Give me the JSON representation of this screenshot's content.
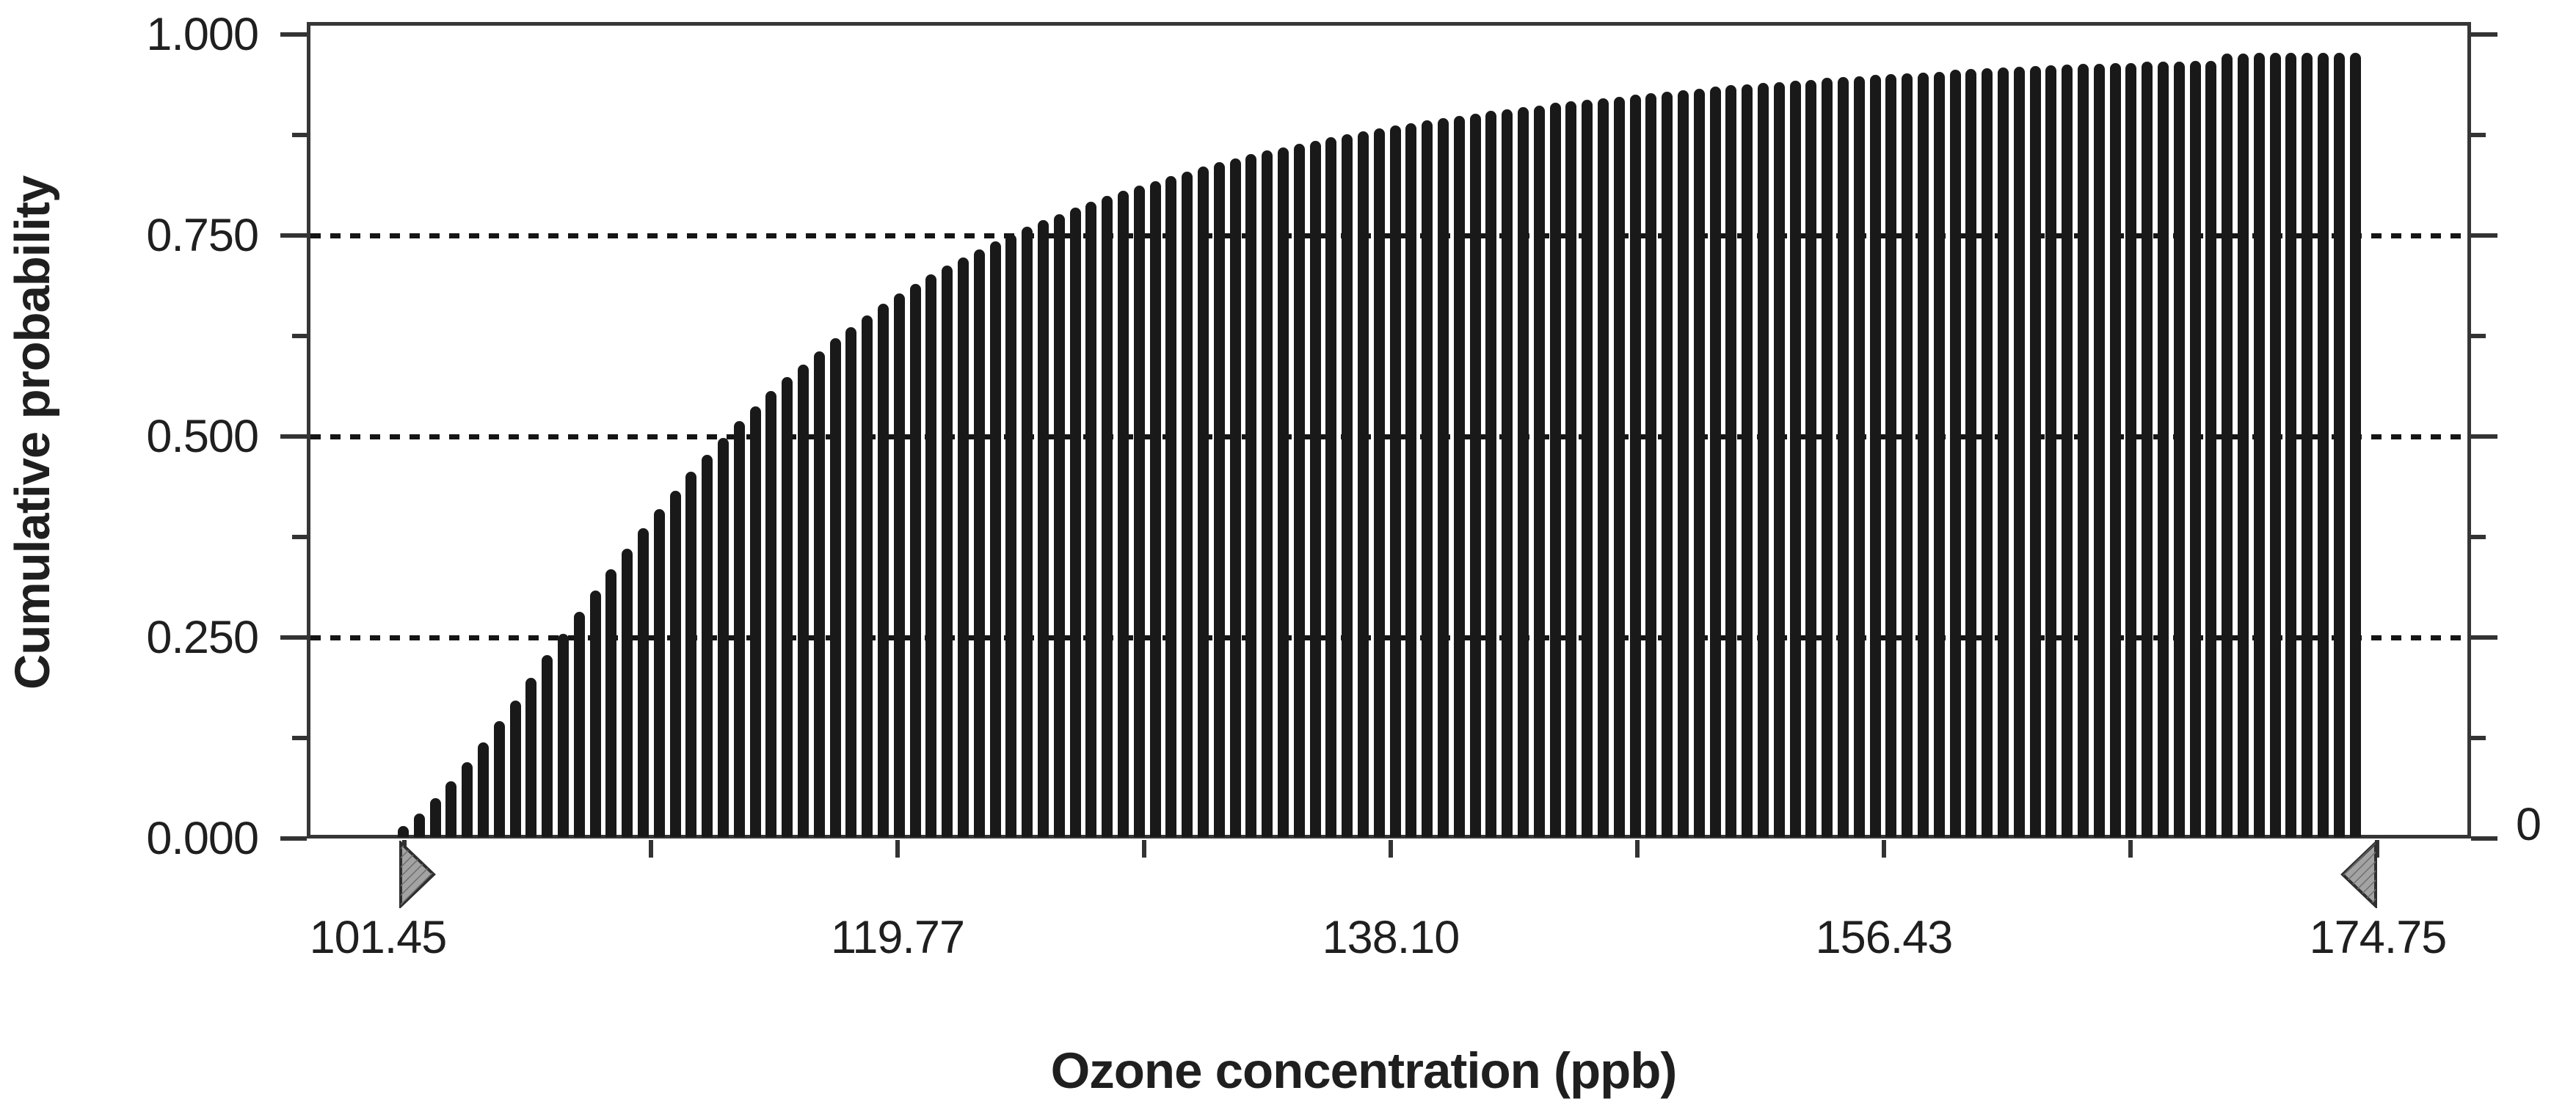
{
  "chart_data": {
    "type": "bar",
    "subtype": "cumulative-distribution",
    "title": "",
    "xlabel": "Ozone concentration (ppb)",
    "ylabel": "Cumulative probability",
    "x_tick_labels": [
      "101.45",
      "119.77",
      "138.10",
      "156.43",
      "174.75"
    ],
    "y_tick_labels_left": [
      "1.000",
      "0.750",
      "0.500",
      "0.250",
      "0.000"
    ],
    "y_right_tick_label": "0",
    "xlim": [
      101.45,
      174.75
    ],
    "ylim": [
      0,
      1
    ],
    "grid": "horizontal-dotted",
    "gridlines_y": [
      0.25,
      0.5,
      0.75
    ],
    "legend_position": "none",
    "bars": {
      "count": 123,
      "first_center_ppb": 101.4,
      "step_ppb": 0.5945,
      "cumulative_probability": [
        0.014,
        0.029,
        0.048,
        0.069,
        0.093,
        0.118,
        0.144,
        0.17,
        0.198,
        0.226,
        0.253,
        0.28,
        0.307,
        0.333,
        0.359,
        0.384,
        0.408,
        0.431,
        0.454,
        0.475,
        0.496,
        0.517,
        0.536,
        0.555,
        0.572,
        0.588,
        0.604,
        0.62,
        0.634,
        0.649,
        0.663,
        0.676,
        0.688,
        0.7,
        0.711,
        0.721,
        0.731,
        0.741,
        0.75,
        0.759,
        0.767,
        0.775,
        0.783,
        0.79,
        0.797,
        0.804,
        0.81,
        0.816,
        0.822,
        0.828,
        0.834,
        0.839,
        0.844,
        0.849,
        0.854,
        0.858,
        0.862,
        0.866,
        0.87,
        0.874,
        0.878,
        0.881,
        0.885,
        0.888,
        0.891,
        0.894,
        0.897,
        0.9,
        0.903,
        0.905,
        0.908,
        0.91,
        0.913,
        0.915,
        0.917,
        0.919,
        0.921,
        0.923,
        0.925,
        0.927,
        0.929,
        0.931,
        0.933,
        0.935,
        0.936,
        0.938,
        0.939,
        0.941,
        0.942,
        0.944,
        0.945,
        0.946,
        0.948,
        0.949,
        0.95,
        0.951,
        0.952,
        0.954,
        0.955,
        0.956,
        0.957,
        0.958,
        0.959,
        0.96,
        0.961,
        0.962,
        0.962,
        0.963,
        0.963,
        0.964,
        0.964,
        0.964,
        0.965,
        0.965,
        0.974,
        0.974,
        0.975,
        0.975,
        0.975,
        0.975,
        0.975,
        0.975,
        0.975
      ]
    }
  },
  "markers": {
    "min_grabber_ppb": 101.45,
    "max_grabber_ppb": 174.75
  },
  "colors": {
    "bar": "#191919",
    "axis": "#363636",
    "tick": "#333333",
    "grid_dot": "#151515",
    "text": "#1f1f1f",
    "grabber_fill": "#a3a3a3",
    "grabber_hatch": "#6f6f6f",
    "grabber_stroke": "#2e2e2e",
    "background": "#ffffff"
  }
}
